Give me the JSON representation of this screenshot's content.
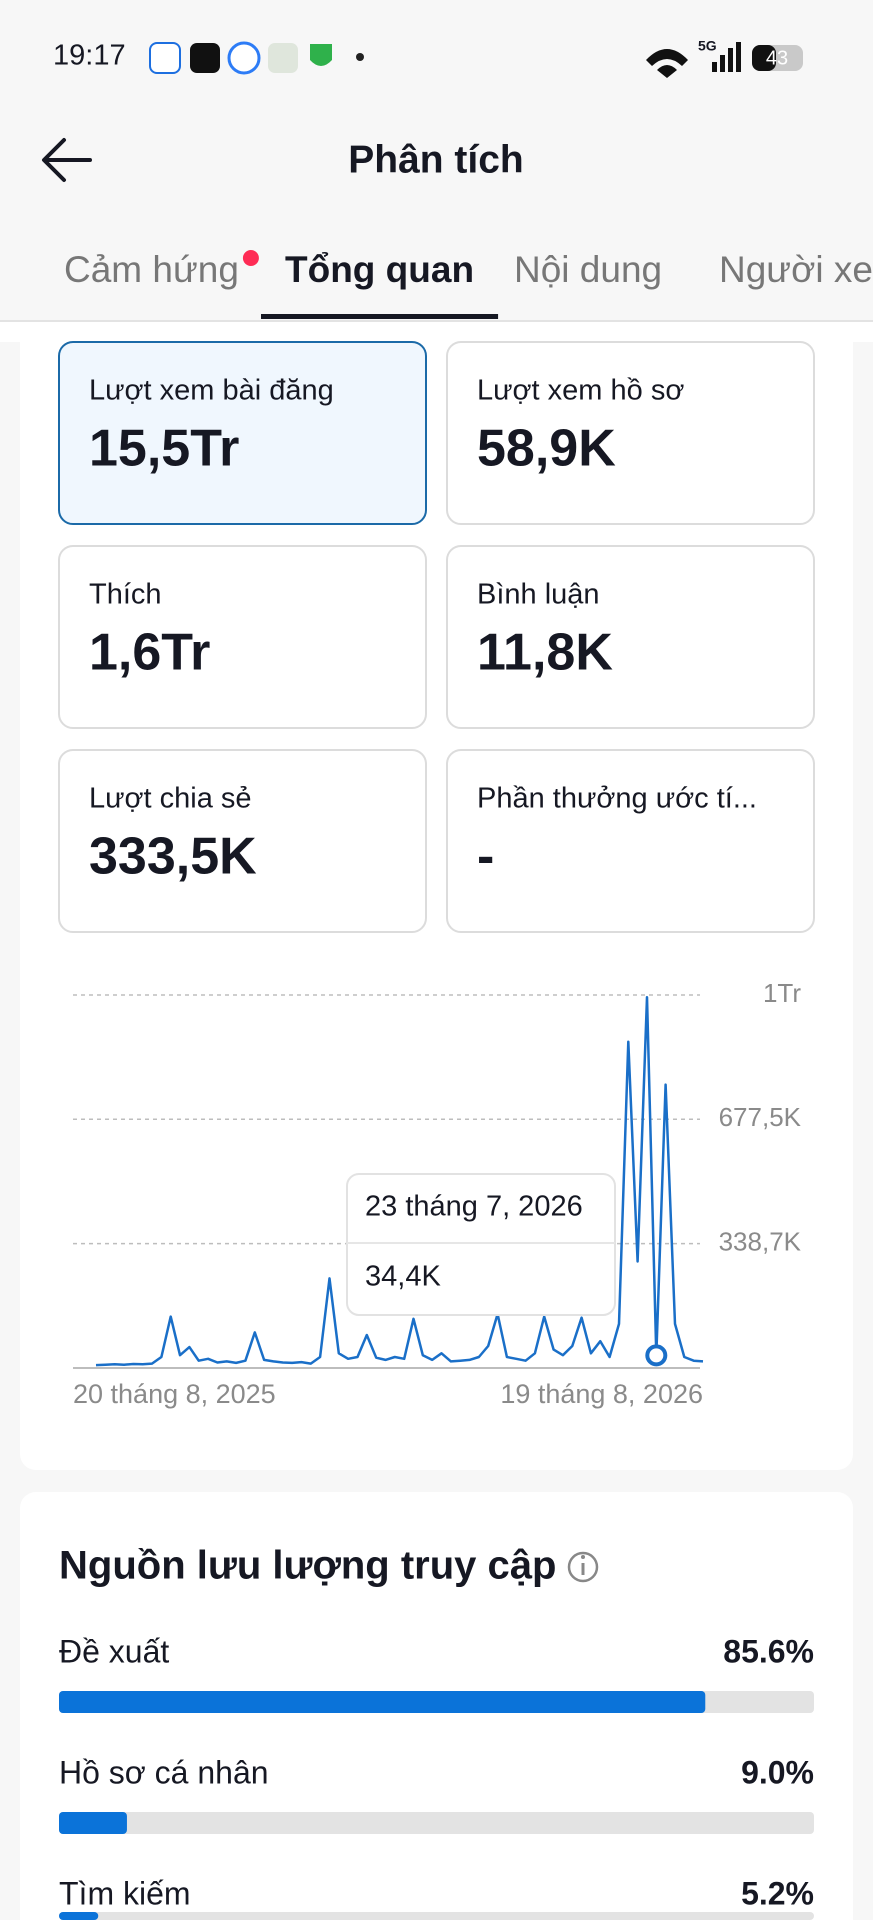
{
  "status_bar": {
    "time": "19:17",
    "network": "5G",
    "battery": "43"
  },
  "header": {
    "title": "Phân tích"
  },
  "tabs": [
    {
      "label": "Cảm hứng",
      "badge": true
    },
    {
      "label": "Tổng quan",
      "active": true
    },
    {
      "label": "Nội dung"
    },
    {
      "label": "Người xem"
    }
  ],
  "metrics": [
    {
      "label": "Lượt xem bài đăng",
      "value": "15,5Tr",
      "selected": true
    },
    {
      "label": "Lượt xem hồ sơ",
      "value": "58,9K"
    },
    {
      "label": "Thích",
      "value": "1,6Tr"
    },
    {
      "label": "Bình luận",
      "value": "11,8K"
    },
    {
      "label": "Lượt chia sẻ",
      "value": "333,5K"
    },
    {
      "label": "Phần thưởng ước tí...",
      "value": "-"
    }
  ],
  "chart_data": {
    "type": "line",
    "color": "#1a6fc8",
    "grid": true,
    "ylim": [
      0,
      1016100
    ],
    "yticks": [
      {
        "value": 338700,
        "label": "338,7K"
      },
      {
        "value": 677500,
        "label": "677,5K"
      },
      {
        "value": 1016100,
        "label": "1Tr"
      }
    ],
    "categories": [
      "20 tháng 8, 2025",
      null,
      null,
      null,
      null,
      null,
      null,
      null,
      null,
      null,
      null,
      null,
      null,
      null,
      null,
      null,
      null,
      null,
      null,
      null,
      null,
      null,
      null,
      null,
      null,
      null,
      null,
      null,
      null,
      null,
      null,
      null,
      null,
      null,
      null,
      null,
      null,
      null,
      null,
      null,
      null,
      null,
      null,
      null,
      null,
      null,
      null,
      null,
      null,
      null,
      null,
      null,
      null,
      null,
      null,
      null,
      null,
      null,
      null,
      null,
      "23 tháng 7, 2026",
      null,
      null,
      null,
      null,
      "19 tháng 8, 2026"
    ],
    "values": [
      8000,
      9000,
      10000,
      9000,
      11000,
      10000,
      12000,
      30000,
      140000,
      35000,
      57000,
      20000,
      25000,
      15000,
      18000,
      14000,
      20000,
      97000,
      22000,
      18000,
      15000,
      14000,
      16000,
      12000,
      30000,
      244000,
      40000,
      25000,
      30000,
      90000,
      28000,
      22000,
      30000,
      25000,
      134000,
      35000,
      22000,
      40000,
      18000,
      20000,
      22000,
      30000,
      60000,
      147000,
      30000,
      25000,
      20000,
      40000,
      140000,
      50000,
      35000,
      60000,
      137000,
      40000,
      73000,
      30000,
      120000,
      889000,
      290000,
      1010000,
      34400,
      772000,
      120000,
      30000,
      20000,
      18000
    ],
    "value_labels": [
      null,
      null,
      null,
      null,
      null,
      null,
      null,
      null,
      null,
      null,
      null,
      null,
      null,
      null,
      null,
      null,
      null,
      null,
      null,
      null,
      null,
      null,
      null,
      null,
      null,
      null,
      null,
      null,
      null,
      null,
      null,
      null,
      null,
      null,
      null,
      null,
      null,
      null,
      null,
      null,
      null,
      null,
      null,
      null,
      null,
      null,
      null,
      null,
      null,
      null,
      null,
      null,
      null,
      null,
      null,
      null,
      null,
      null,
      null,
      null,
      "34,4K",
      null,
      null,
      null,
      null,
      null
    ]
  },
  "traffic": {
    "title": "Nguồn lưu lượng truy cập",
    "xlim": [
      0,
      100
    ],
    "color": "#0b73d9",
    "items": [
      {
        "name": "Đề xuất",
        "value": 85.6,
        "label": "85.6%"
      },
      {
        "name": "Hồ sơ cá nhân",
        "value": 9.0,
        "label": "9.0%"
      },
      {
        "name": "Tìm kiếm",
        "value": 5.2,
        "label": "5.2%"
      }
    ]
  }
}
